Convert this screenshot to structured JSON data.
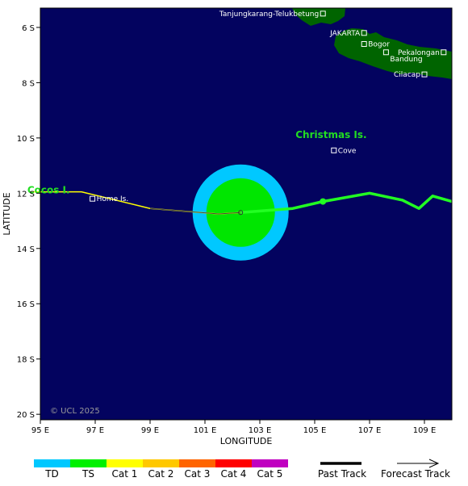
{
  "map": {
    "background_color": "#03035f",
    "land_color": "#006400",
    "lon_range": [
      95,
      110
    ],
    "lat_range": [
      5.3,
      20.2
    ],
    "lat_hemisphere": "S",
    "copyright": "© UCL 2025",
    "axes": {
      "x_title": "LONGITUDE",
      "y_title": "LATITUDE",
      "x_ticks": [
        {
          "value": 95,
          "label": "95 E"
        },
        {
          "value": 97,
          "label": "97 E"
        },
        {
          "value": 99,
          "label": "99 E"
        },
        {
          "value": 101,
          "label": "101 E"
        },
        {
          "value": 103,
          "label": "103 E"
        },
        {
          "value": 105,
          "label": "105 E"
        },
        {
          "value": 107,
          "label": "107 E"
        },
        {
          "value": 109,
          "label": "109 E"
        }
      ],
      "y_ticks": [
        {
          "value": 6,
          "label": "6 S"
        },
        {
          "value": 8,
          "label": "8 S"
        },
        {
          "value": 10,
          "label": "10 S"
        },
        {
          "value": 12,
          "label": "12 S"
        },
        {
          "value": 14,
          "label": "14 S"
        },
        {
          "value": 16,
          "label": "16 S"
        },
        {
          "value": 18,
          "label": "18 S"
        },
        {
          "value": 20,
          "label": "20 S"
        }
      ]
    },
    "places": [
      {
        "name": "Tanjungkarang-Telukbetung",
        "lon": 105.3,
        "lat": 5.5,
        "label_side": "left"
      },
      {
        "name": "JAKARTA",
        "lon": 106.8,
        "lat": 6.2,
        "label_side": "left"
      },
      {
        "name": "Bogor",
        "lon": 106.8,
        "lat": 6.6,
        "label_side": "right"
      },
      {
        "name": "Pekalongan",
        "lon": 109.7,
        "lat": 6.9,
        "label_side": "left"
      },
      {
        "name": "Bandung",
        "lon": 107.6,
        "lat": 6.9,
        "label_side": "right-below"
      },
      {
        "name": "Cilacap",
        "lon": 109.0,
        "lat": 7.7,
        "label_side": "left"
      },
      {
        "name": "Cove",
        "lon": 105.7,
        "lat": 10.45,
        "label_side": "right"
      },
      {
        "name": "Home Is.",
        "lon": 96.9,
        "lat": 12.2,
        "label_side": "right"
      }
    ],
    "islands": [
      {
        "name": "Christmas Is.",
        "lon": 105.6,
        "lat": 10.0
      },
      {
        "name": "Cocos I.",
        "lon": 95.3,
        "lat": 12.0
      }
    ],
    "storm": {
      "center": {
        "lon": 102.3,
        "lat": 12.7
      },
      "td_radius_deg": 1.75,
      "ts_radius_deg": 1.25,
      "td_color": "#00c8ff",
      "ts_color": "#00e600"
    },
    "tracks": {
      "past_color": "#ffff00",
      "forecast_color": "#22ff22",
      "past_points": [
        {
          "lon": 94.7,
          "lat": 11.95
        },
        {
          "lon": 96.5,
          "lat": 11.95
        },
        {
          "lon": 99.0,
          "lat": 12.55
        },
        {
          "lon": 101.5,
          "lat": 12.75
        },
        {
          "lon": 102.3,
          "lat": 12.7
        }
      ],
      "forecast_points": [
        {
          "lon": 102.3,
          "lat": 12.7
        },
        {
          "lon": 104.2,
          "lat": 12.55
        },
        {
          "lon": 105.3,
          "lat": 12.3
        },
        {
          "lon": 107.0,
          "lat": 12.0
        },
        {
          "lon": 108.2,
          "lat": 12.25
        },
        {
          "lon": 108.8,
          "lat": 12.55
        },
        {
          "lon": 109.3,
          "lat": 12.1
        },
        {
          "lon": 110.0,
          "lat": 12.3
        }
      ],
      "forecast_marker": {
        "lon": 105.3,
        "lat": 12.3
      }
    }
  },
  "legend": {
    "categories": [
      {
        "label": "TD",
        "color": "#00c8ff"
      },
      {
        "label": "TS",
        "color": "#00f000"
      },
      {
        "label": "Cat 1",
        "color": "#ffff00"
      },
      {
        "label": "Cat 2",
        "color": "#ffc800"
      },
      {
        "label": "Cat 3",
        "color": "#ff6400"
      },
      {
        "label": "Cat 4",
        "color": "#ff0000"
      },
      {
        "label": "Cat 5",
        "color": "#c000c0"
      }
    ],
    "past_track_label": "Past Track",
    "forecast_track_label": "Forecast Track"
  }
}
